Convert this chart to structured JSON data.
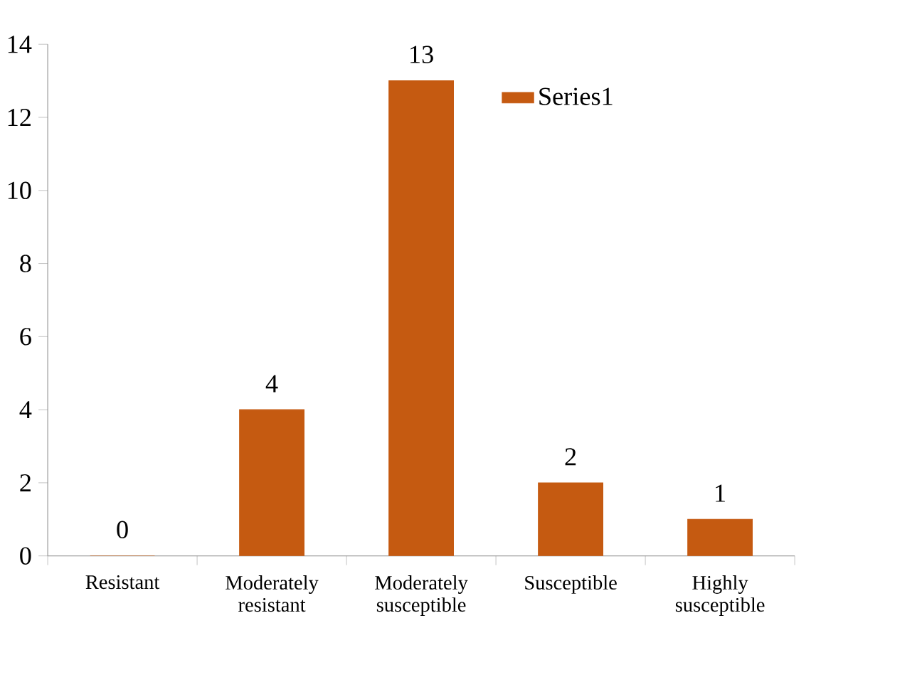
{
  "chart_data": {
    "type": "bar",
    "categories": [
      "Resistant",
      "Moderately resistant",
      "Moderately susceptible",
      "Susceptible",
      "Highly susceptible"
    ],
    "series": [
      {
        "name": "Series1",
        "color": "#c55a11",
        "values": [
          0,
          4,
          13,
          2,
          1
        ]
      }
    ],
    "ylim": [
      0,
      14
    ],
    "yticks": [
      0,
      2,
      4,
      6,
      8,
      10,
      12,
      14
    ],
    "data_labels": true,
    "legend": "top right",
    "grid": false
  }
}
